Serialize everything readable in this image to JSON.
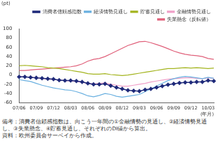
{
  "chart_data": {
    "type": "line",
    "title": "(pt)",
    "x_label": "(年月)",
    "categories": [
      "07/06",
      null,
      null,
      "07/09",
      null,
      null,
      "07/12",
      null,
      null,
      "08/03",
      null,
      null,
      "08/06",
      null,
      null,
      "08/09",
      null,
      null,
      "08/12",
      null,
      null,
      "09/03",
      null,
      null,
      "09/06",
      null,
      null,
      "09/09",
      null,
      null,
      "09/12",
      null,
      null,
      "10/03",
      null
    ],
    "series": [
      {
        "name": "消費者信頼感指数",
        "color": "#1f2a7a",
        "marker": "diamond",
        "values": [
          -4,
          -4,
          -5,
          -6,
          -7,
          -8,
          -9,
          -11,
          -12,
          -12,
          -13,
          -15,
          -18,
          -20,
          -20,
          -19,
          -23,
          -27,
          -30,
          -33,
          -34,
          -35,
          -32,
          -30,
          -27,
          -24,
          -21,
          -19,
          -17,
          -16,
          -16,
          -15,
          -15,
          -12,
          -13
        ]
      },
      {
        "name": "経済情勢見通し",
        "color": "#6ab0e0",
        "marker": "none",
        "values": [
          -10,
          -12,
          -14,
          -18,
          -22,
          -25,
          -28,
          -30,
          -32,
          -33,
          -36,
          -40,
          -45,
          -47,
          -44,
          -40,
          -42,
          -46,
          -48,
          -46,
          -44,
          -42,
          -36,
          -30,
          -24,
          -18,
          -12,
          -8,
          -5,
          -3,
          -4,
          -6,
          -8,
          -5,
          -7
        ]
      },
      {
        "name": "貯蓄見通し",
        "color": "#a3b41e",
        "marker": "none",
        "values": [
          20,
          21,
          20,
          19,
          18,
          16,
          15,
          14,
          12,
          10,
          8,
          6,
          3,
          2,
          2,
          3,
          1,
          0,
          -1,
          0,
          2,
          4,
          6,
          8,
          10,
          12,
          14,
          14,
          15,
          16,
          15,
          16,
          15,
          14,
          15
        ]
      },
      {
        "name": "金融情勢見通し",
        "color": "#f0a0c8",
        "marker": "none",
        "values": [
          -3,
          -4,
          -5,
          -6,
          -7,
          -9,
          -10,
          -11,
          -12,
          -13,
          -14,
          -16,
          -18,
          -19,
          -18,
          -17,
          -20,
          -22,
          -24,
          -24,
          -22,
          -20,
          -18,
          -15,
          -13,
          -11,
          -9,
          -8,
          -7,
          -6,
          -6,
          -7,
          -8,
          -6,
          -7
        ]
      },
      {
        "name": "失業懸念（反転値）",
        "color": "#e0607a",
        "marker": "none",
        "values": [
          10,
          10,
          11,
          12,
          13,
          14,
          15,
          16,
          17,
          18,
          20,
          24,
          30,
          34,
          36,
          40,
          46,
          52,
          58,
          64,
          68,
          72,
          73,
          70,
          66,
          62,
          57,
          52,
          48,
          45,
          43,
          42,
          40,
          36,
          34
        ]
      }
    ],
    "ylim": [
      -60,
      100
    ],
    "yticks": [
      -60,
      -40,
      -20,
      0,
      20,
      40,
      60,
      80,
      100
    ],
    "grid": false,
    "legend": "top",
    "notes": [
      "備考：消費者信頼感指数は、向こう一年間の①金融情勢の見通し、②経済情勢見通し、③失業懸念、④貯蓄見通し、それぞれのDI値から算出。",
      "資料：欧州委員会サーベイから作成。"
    ]
  }
}
